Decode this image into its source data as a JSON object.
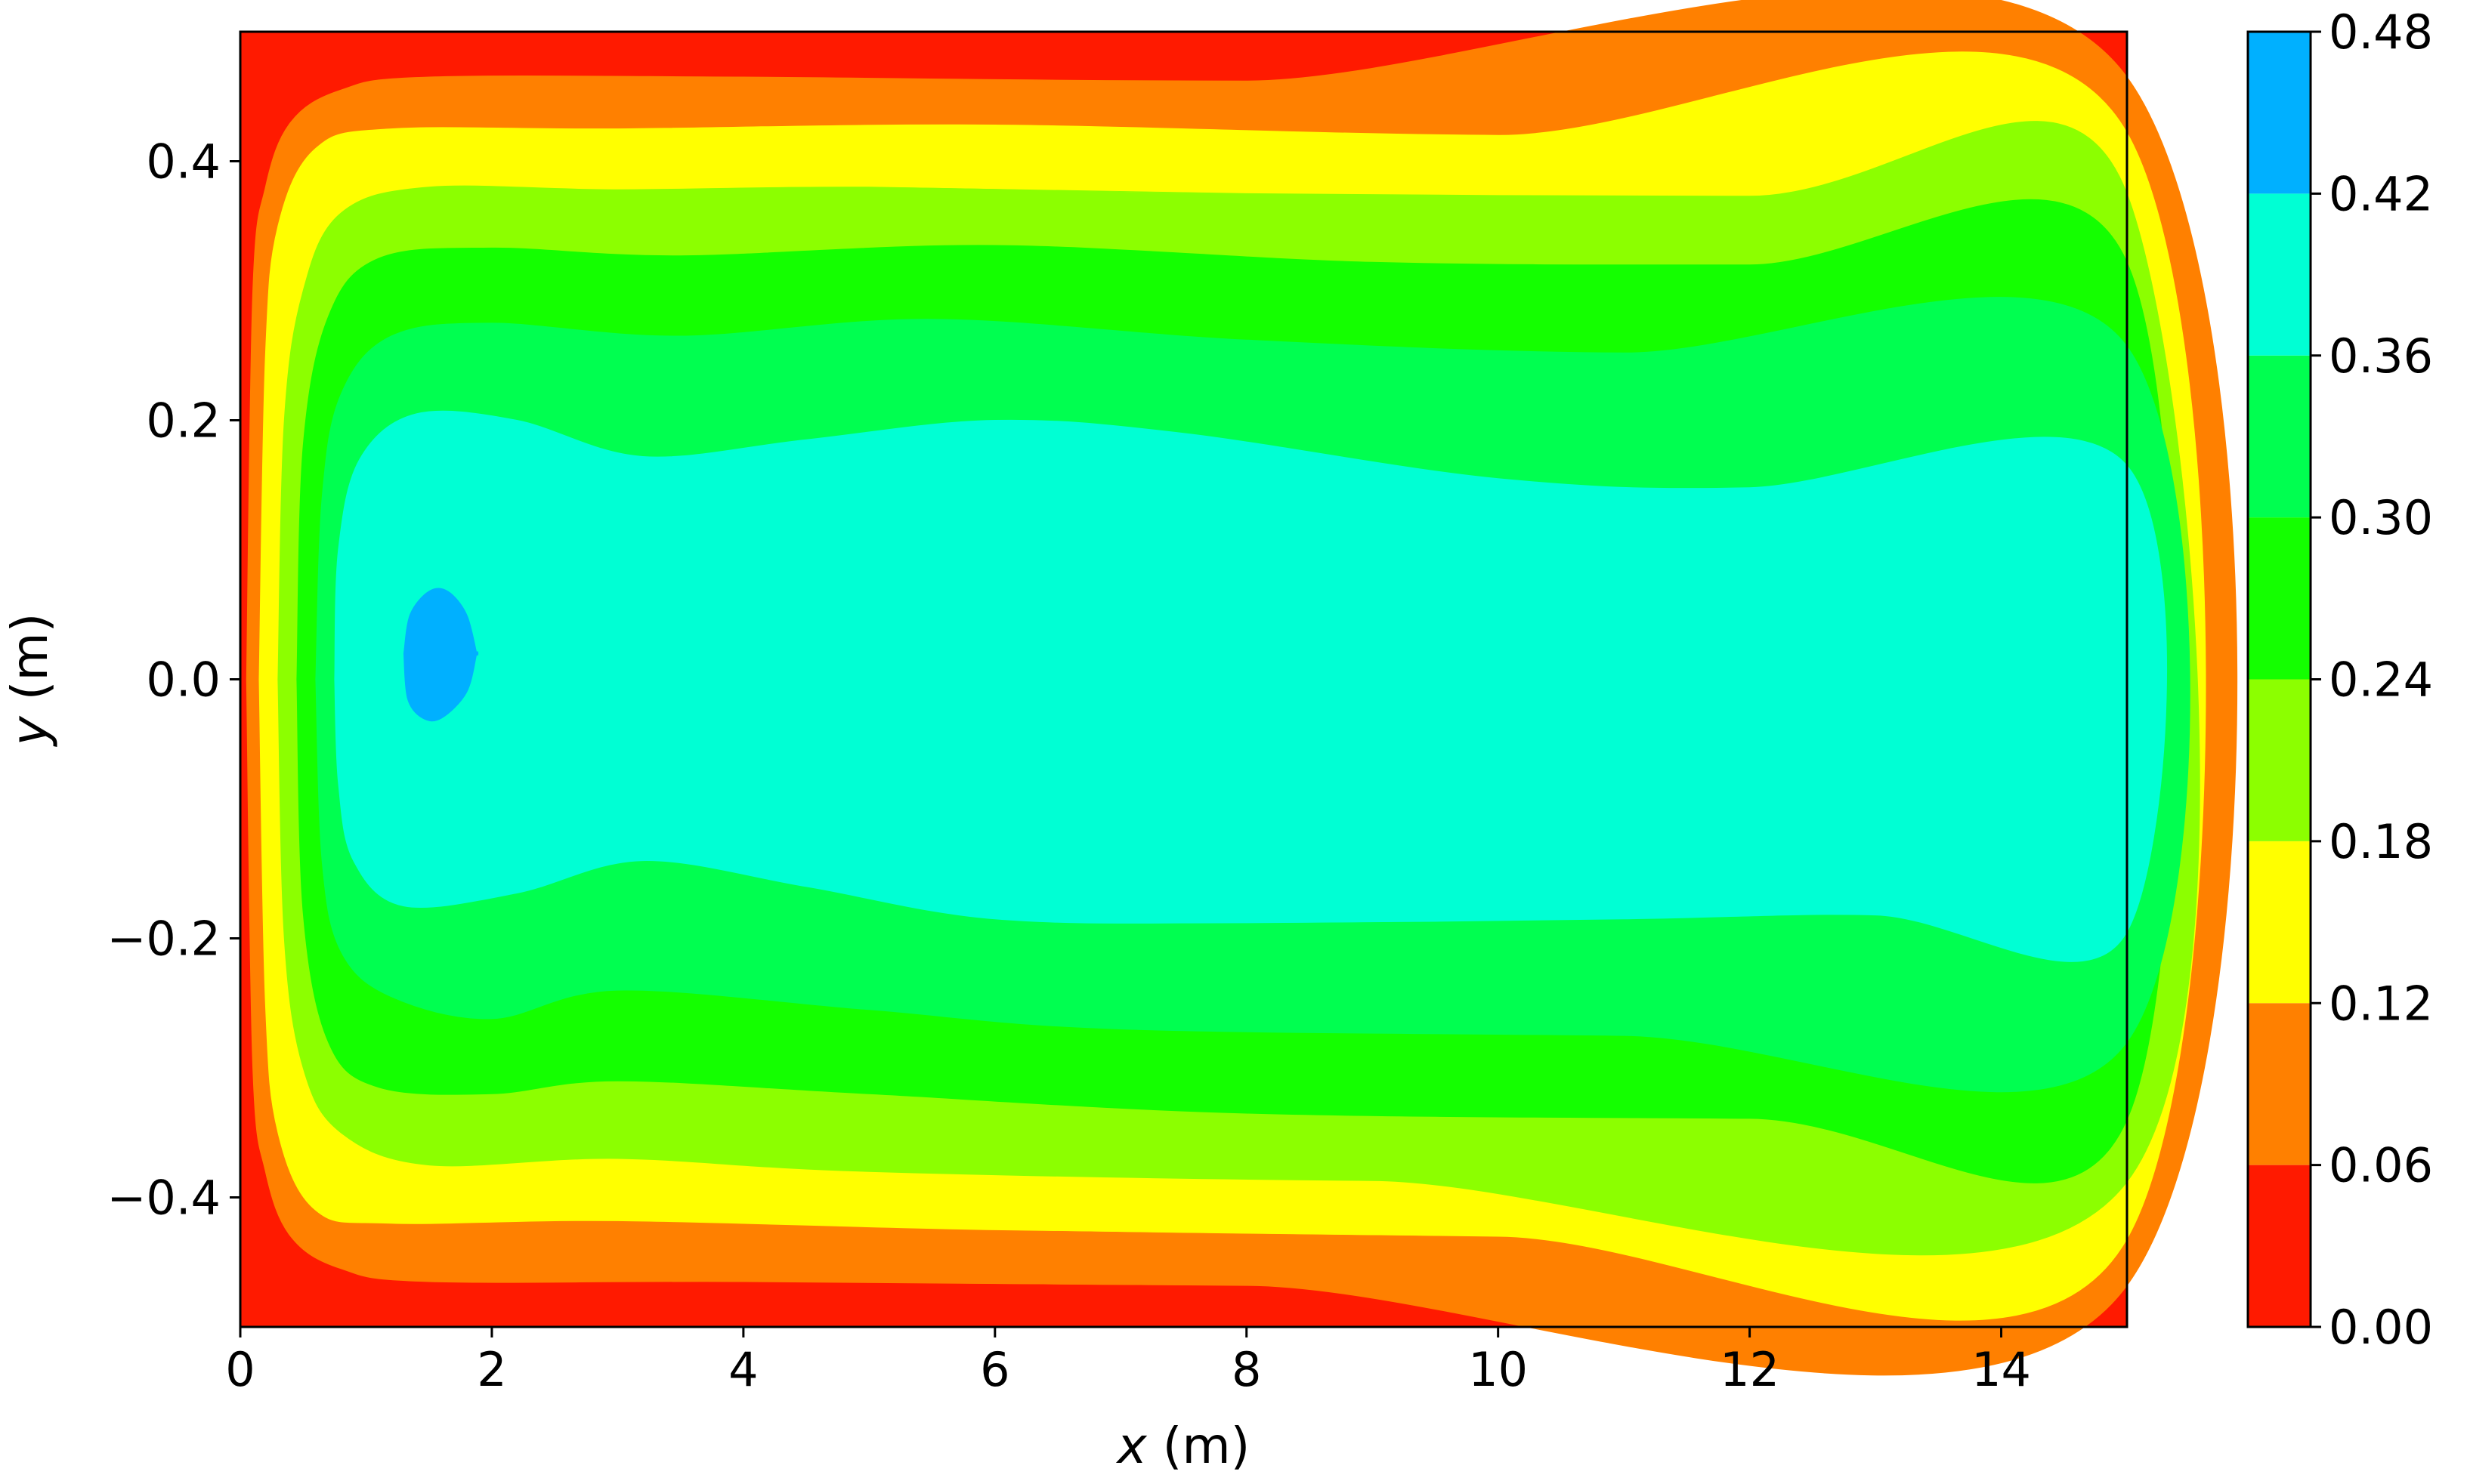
{
  "chart_data": {
    "type": "contour",
    "title": "",
    "xlabel_var": "x",
    "xlabel_unit": " (m)",
    "ylabel_var": "y",
    "ylabel_unit": " (m)",
    "xlim": [
      0,
      15
    ],
    "ylim": [
      -0.5,
      0.5
    ],
    "x_ticks": [
      0,
      2,
      4,
      6,
      8,
      10,
      12,
      14
    ],
    "x_tick_labels": [
      "0",
      "2",
      "4",
      "6",
      "8",
      "10",
      "12",
      "14"
    ],
    "y_ticks": [
      -0.4,
      -0.2,
      0.0,
      0.2,
      0.4
    ],
    "y_tick_labels": [
      "−0.4",
      "−0.2",
      "0.0",
      "0.2",
      "0.4"
    ],
    "grid": false,
    "colorbar": {
      "levels": [
        0.0,
        0.06,
        0.12,
        0.18,
        0.24,
        0.3,
        0.36,
        0.42,
        0.48
      ],
      "level_labels": [
        "0.00",
        "0.06",
        "0.12",
        "0.18",
        "0.24",
        "0.30",
        "0.36",
        "0.42",
        "0.48"
      ],
      "colors": [
        "#ff1a00",
        "#ff8000",
        "#ffff00",
        "#8cff00",
        "#14ff00",
        "#00ff50",
        "#00ffd4",
        "#00b0ff"
      ]
    },
    "contour_bands": [
      {
        "level_index": 1,
        "color": "#ff8000",
        "upper_edge": [
          [
            0.05,
            0.0
          ],
          [
            0.1,
            0.3
          ],
          [
            0.2,
            0.38
          ],
          [
            0.4,
            0.43
          ],
          [
            0.8,
            0.455
          ],
          [
            1.5,
            0.465
          ],
          [
            4,
            0.465
          ],
          [
            8,
            0.462
          ],
          [
            15,
            0.465
          ]
        ],
        "lower_edge": [
          [
            0.05,
            0.0
          ],
          [
            0.1,
            -0.3
          ],
          [
            0.2,
            -0.38
          ],
          [
            0.4,
            -0.43
          ],
          [
            0.8,
            -0.455
          ],
          [
            1.5,
            -0.465
          ],
          [
            4,
            -0.465
          ],
          [
            8,
            -0.468
          ],
          [
            15,
            -0.468
          ]
        ]
      },
      {
        "level_index": 2,
        "color": "#ffff00",
        "upper_edge": [
          [
            0.15,
            0.0
          ],
          [
            0.2,
            0.25
          ],
          [
            0.3,
            0.35
          ],
          [
            0.6,
            0.41
          ],
          [
            1.2,
            0.425
          ],
          [
            3,
            0.425
          ],
          [
            6,
            0.428
          ],
          [
            10,
            0.42
          ],
          [
            15,
            0.422
          ]
        ],
        "lower_edge": [
          [
            0.15,
            0.0
          ],
          [
            0.2,
            -0.25
          ],
          [
            0.3,
            -0.35
          ],
          [
            0.6,
            -0.41
          ],
          [
            1.2,
            -0.42
          ],
          [
            3,
            -0.418
          ],
          [
            6,
            -0.425
          ],
          [
            10,
            -0.43
          ],
          [
            15,
            -0.432
          ]
        ]
      },
      {
        "level_index": 3,
        "color": "#8cff00",
        "upper_edge": [
          [
            0.3,
            0.0
          ],
          [
            0.35,
            0.2
          ],
          [
            0.5,
            0.3
          ],
          [
            0.8,
            0.36
          ],
          [
            1.5,
            0.38
          ],
          [
            3,
            0.378
          ],
          [
            5,
            0.38
          ],
          [
            8,
            0.375
          ],
          [
            12,
            0.373
          ],
          [
            15,
            0.375
          ]
        ],
        "lower_edge": [
          [
            0.3,
            0.0
          ],
          [
            0.35,
            -0.2
          ],
          [
            0.5,
            -0.3
          ],
          [
            0.8,
            -0.35
          ],
          [
            1.5,
            -0.375
          ],
          [
            3,
            -0.37
          ],
          [
            5,
            -0.38
          ],
          [
            9,
            -0.387
          ],
          [
            15,
            -0.388
          ]
        ]
      },
      {
        "level_index": 4,
        "color": "#14ff00",
        "upper_edge": [
          [
            0.45,
            0.0
          ],
          [
            0.5,
            0.18
          ],
          [
            0.7,
            0.28
          ],
          [
            1.1,
            0.325
          ],
          [
            2,
            0.333
          ],
          [
            3.5,
            0.327
          ],
          [
            6,
            0.335
          ],
          [
            9,
            0.322
          ],
          [
            12,
            0.32
          ],
          [
            15,
            0.322
          ]
        ],
        "lower_edge": [
          [
            0.45,
            0.0
          ],
          [
            0.5,
            -0.18
          ],
          [
            0.7,
            -0.28
          ],
          [
            1.1,
            -0.315
          ],
          [
            2,
            -0.32
          ],
          [
            3,
            -0.31
          ],
          [
            5,
            -0.32
          ],
          [
            8,
            -0.335
          ],
          [
            12,
            -0.339
          ],
          [
            15,
            -0.34
          ]
        ]
      },
      {
        "level_index": 5,
        "color": "#00ff50",
        "upper_edge": [
          [
            0.6,
            0.0
          ],
          [
            0.65,
            0.14
          ],
          [
            0.8,
            0.22
          ],
          [
            1.2,
            0.265
          ],
          [
            2,
            0.275
          ],
          [
            3.5,
            0.265
          ],
          [
            5.5,
            0.278
          ],
          [
            8,
            0.262
          ],
          [
            11,
            0.252
          ],
          [
            15,
            0.257
          ]
        ],
        "lower_edge": [
          [
            0.6,
            0.0
          ],
          [
            0.65,
            -0.14
          ],
          [
            0.8,
            -0.21
          ],
          [
            1.2,
            -0.245
          ],
          [
            2,
            -0.262
          ],
          [
            3,
            -0.24
          ],
          [
            5,
            -0.255
          ],
          [
            7,
            -0.27
          ],
          [
            11,
            -0.275
          ],
          [
            15,
            -0.28
          ]
        ]
      },
      {
        "level_index": 6,
        "color": "#00ffd4",
        "upper_edge": [
          [
            0.75,
            0.0
          ],
          [
            0.78,
            0.1
          ],
          [
            0.95,
            0.17
          ],
          [
            1.4,
            0.205
          ],
          [
            2.2,
            0.2
          ],
          [
            3.2,
            0.172
          ],
          [
            4.5,
            0.185
          ],
          [
            6,
            0.2
          ],
          [
            7.5,
            0.19
          ],
          [
            10,
            0.155
          ],
          [
            12,
            0.148
          ],
          [
            15,
            0.165
          ]
        ],
        "lower_edge": [
          [
            0.75,
            0.0
          ],
          [
            0.78,
            -0.08
          ],
          [
            0.9,
            -0.14
          ],
          [
            1.3,
            -0.175
          ],
          [
            2.2,
            -0.165
          ],
          [
            3.2,
            -0.14
          ],
          [
            4.5,
            -0.16
          ],
          [
            6,
            -0.185
          ],
          [
            8,
            -0.188
          ],
          [
            11,
            -0.185
          ],
          [
            13,
            -0.182
          ],
          [
            15,
            -0.195
          ]
        ]
      },
      {
        "level_index": 7,
        "color": "#00b0ff",
        "upper_edge": [
          [
            1.3,
            0.02
          ],
          [
            1.35,
            0.05
          ],
          [
            1.5,
            0.068
          ],
          [
            1.65,
            0.068
          ],
          [
            1.8,
            0.05
          ],
          [
            1.88,
            0.02
          ]
        ],
        "lower_edge": [
          [
            1.3,
            0.02
          ],
          [
            1.33,
            -0.015
          ],
          [
            1.45,
            -0.03
          ],
          [
            1.6,
            -0.03
          ],
          [
            1.8,
            -0.01
          ],
          [
            1.88,
            0.02
          ]
        ]
      }
    ]
  }
}
